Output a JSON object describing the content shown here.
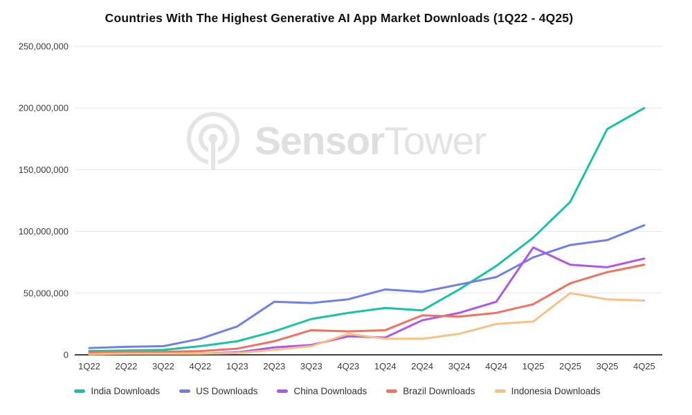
{
  "title": "Countries With The Highest Generative AI App Market Downloads (1Q22 - 4Q25)",
  "watermark": {
    "brand_bold": "Sensor",
    "brand_light": "Tower",
    "logo": "sensor-tower-antenna-logo"
  },
  "chart_data": {
    "type": "line",
    "title": "Countries With The Highest Generative AI App Market Downloads (1Q22 - 4Q25)",
    "xlabel": "",
    "ylabel": "",
    "grid": true,
    "legend_position": "bottom",
    "ylim": [
      0,
      250000000
    ],
    "y_ticks": [
      "0",
      "50,000,000",
      "100,000,000",
      "150,000,000",
      "200,000,000",
      "250,000,000"
    ],
    "categories": [
      "1Q22",
      "2Q22",
      "3Q22",
      "4Q22",
      "1Q23",
      "2Q23",
      "3Q23",
      "4Q23",
      "1Q24",
      "2Q24",
      "3Q24",
      "4Q24",
      "1Q25",
      "2Q25",
      "3Q25",
      "4Q25"
    ],
    "series": [
      {
        "name": "India Downloads",
        "color": "#17c3a3",
        "values": [
          3000000,
          3500000,
          4000000,
          7000000,
          11000000,
          19000000,
          29000000,
          34000000,
          38000000,
          36000000,
          53000000,
          72000000,
          95000000,
          124000000,
          183000000,
          200000000
        ]
      },
      {
        "name": "US Downloads",
        "color": "#6e7fe8",
        "values": [
          5500000,
          6500000,
          7000000,
          13000000,
          23000000,
          43000000,
          42000000,
          45000000,
          53000000,
          51000000,
          57000000,
          63000000,
          79000000,
          89000000,
          93000000,
          105000000
        ]
      },
      {
        "name": "China Downloads",
        "color": "#ae55ec",
        "values": [
          1000000,
          1000000,
          1000000,
          1000000,
          2000000,
          6000000,
          8000000,
          15000000,
          14000000,
          28000000,
          34000000,
          43000000,
          87000000,
          73000000,
          71000000,
          78000000
        ]
      },
      {
        "name": "Brazil Downloads",
        "color": "#f0715d",
        "values": [
          2000000,
          2500000,
          2500000,
          3000000,
          5000000,
          11000000,
          20000000,
          19000000,
          20000000,
          32000000,
          31000000,
          34000000,
          41000000,
          58000000,
          67000000,
          73000000
        ]
      },
      {
        "name": "Indonesia Downloads",
        "color": "#f9c083",
        "values": [
          500000,
          1000000,
          1000000,
          1000000,
          1500000,
          4000000,
          7000000,
          17000000,
          13000000,
          13000000,
          17000000,
          25000000,
          27000000,
          50000000,
          45000000,
          44000000
        ]
      }
    ]
  }
}
